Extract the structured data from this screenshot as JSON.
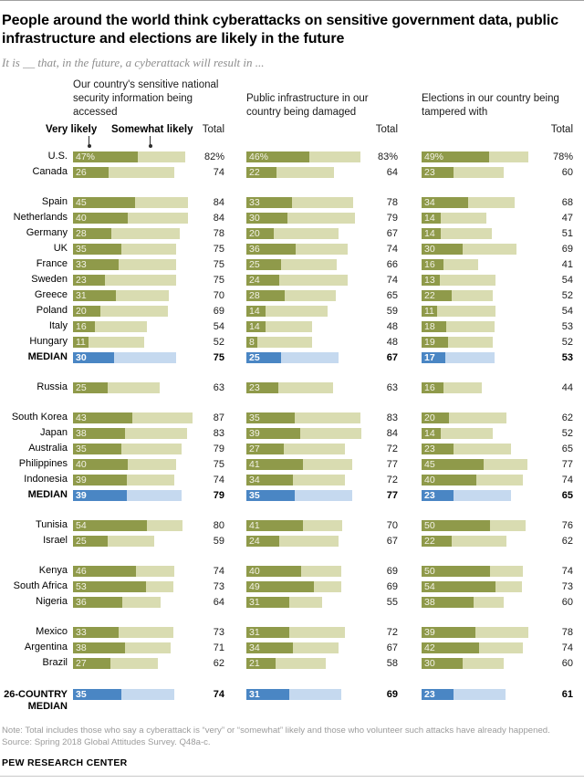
{
  "header": {
    "title": "People around the world think cyberattacks on sensitive government data, public infrastructure and elections are likely in the future",
    "subtitle": "It is __ that, in the future, a cyberattack will result in ...",
    "legend": {
      "very_likely": "Very likely",
      "somewhat_likely": "Somewhat likely",
      "total": "Total"
    }
  },
  "columns": [
    {
      "header": "Our country's sensitive national security information being accessed"
    },
    {
      "header": "Public infrastructure in our country being damaged"
    },
    {
      "header": "Elections in our country being tampered with"
    }
  ],
  "colors": {
    "very_likely": "#8f9a4a",
    "somewhat_likely": "#d9dcb1",
    "median_very": "#4a86c4",
    "median_somewhat": "#c5d9ef"
  },
  "footer": {
    "note": "Note: Total includes those who say a cyberattack is “very” or “somewhat” likely and those who volunteer such attacks have already happened.",
    "source": "Source: Spring 2018 Global Attitudes Survey. Q48a-c.",
    "brand": "PEW RESEARCH CENTER"
  },
  "chart_data": {
    "type": "bar",
    "orientation": "horizontal",
    "stacked": true,
    "unit": "percent",
    "xlim": [
      0,
      100
    ],
    "legend_entries": [
      "Very likely",
      "Somewhat likely"
    ],
    "measures": [
      "Our country's sensitive national security information being accessed",
      "Public infrastructure in our country being damaged",
      "Elections in our country being tampered with"
    ],
    "value_note": "values per measure: very = % very likely (dark segment), total = % total likely (full bar length)",
    "groups": [
      {
        "rows": [
          {
            "label": "U.S.",
            "pct_suffix": true,
            "values": [
              {
                "very": 47,
                "total": 82
              },
              {
                "very": 46,
                "total": 83
              },
              {
                "very": 49,
                "total": 78
              }
            ]
          },
          {
            "label": "Canada",
            "values": [
              {
                "very": 26,
                "total": 74
              },
              {
                "very": 22,
                "total": 64
              },
              {
                "very": 23,
                "total": 60
              }
            ]
          }
        ]
      },
      {
        "rows": [
          {
            "label": "Spain",
            "values": [
              {
                "very": 45,
                "total": 84
              },
              {
                "very": 33,
                "total": 78
              },
              {
                "very": 34,
                "total": 68
              }
            ]
          },
          {
            "label": "Netherlands",
            "values": [
              {
                "very": 40,
                "total": 84
              },
              {
                "very": 30,
                "total": 79
              },
              {
                "very": 14,
                "total": 47
              }
            ]
          },
          {
            "label": "Germany",
            "values": [
              {
                "very": 28,
                "total": 78
              },
              {
                "very": 20,
                "total": 67
              },
              {
                "very": 14,
                "total": 51
              }
            ]
          },
          {
            "label": "UK",
            "values": [
              {
                "very": 35,
                "total": 75
              },
              {
                "very": 36,
                "total": 74
              },
              {
                "very": 30,
                "total": 69
              }
            ]
          },
          {
            "label": "France",
            "values": [
              {
                "very": 33,
                "total": 75
              },
              {
                "very": 25,
                "total": 66
              },
              {
                "very": 16,
                "total": 41
              }
            ]
          },
          {
            "label": "Sweden",
            "values": [
              {
                "very": 23,
                "total": 75
              },
              {
                "very": 24,
                "total": 74
              },
              {
                "very": 13,
                "total": 54
              }
            ]
          },
          {
            "label": "Greece",
            "values": [
              {
                "very": 31,
                "total": 70
              },
              {
                "very": 28,
                "total": 65
              },
              {
                "very": 22,
                "total": 52
              }
            ]
          },
          {
            "label": "Poland",
            "values": [
              {
                "very": 20,
                "total": 69
              },
              {
                "very": 14,
                "total": 59
              },
              {
                "very": 11,
                "total": 54
              }
            ]
          },
          {
            "label": "Italy",
            "values": [
              {
                "very": 16,
                "total": 54
              },
              {
                "very": 14,
                "total": 48
              },
              {
                "very": 18,
                "total": 53
              }
            ]
          },
          {
            "label": "Hungary",
            "values": [
              {
                "very": 11,
                "total": 52
              },
              {
                "very": 8,
                "total": 48
              },
              {
                "very": 19,
                "total": 52
              }
            ]
          },
          {
            "label": "MEDIAN",
            "median": true,
            "values": [
              {
                "very": 30,
                "total": 75
              },
              {
                "very": 25,
                "total": 67
              },
              {
                "very": 17,
                "total": 53
              }
            ]
          }
        ]
      },
      {
        "rows": [
          {
            "label": "Russia",
            "values": [
              {
                "very": 25,
                "total": 63
              },
              {
                "very": 23,
                "total": 63
              },
              {
                "very": 16,
                "total": 44
              }
            ]
          }
        ]
      },
      {
        "rows": [
          {
            "label": "South Korea",
            "values": [
              {
                "very": 43,
                "total": 87
              },
              {
                "very": 35,
                "total": 83
              },
              {
                "very": 20,
                "total": 62
              }
            ]
          },
          {
            "label": "Japan",
            "values": [
              {
                "very": 38,
                "total": 83
              },
              {
                "very": 39,
                "total": 84
              },
              {
                "very": 14,
                "total": 52
              }
            ]
          },
          {
            "label": "Australia",
            "values": [
              {
                "very": 35,
                "total": 79
              },
              {
                "very": 27,
                "total": 72
              },
              {
                "very": 23,
                "total": 65
              }
            ]
          },
          {
            "label": "Philippines",
            "values": [
              {
                "very": 40,
                "total": 75
              },
              {
                "very": 41,
                "total": 77
              },
              {
                "very": 45,
                "total": 77
              }
            ]
          },
          {
            "label": "Indonesia",
            "values": [
              {
                "very": 39,
                "total": 74
              },
              {
                "very": 34,
                "total": 72
              },
              {
                "very": 40,
                "total": 74
              }
            ]
          },
          {
            "label": "MEDIAN",
            "median": true,
            "values": [
              {
                "very": 39,
                "total": 79
              },
              {
                "very": 35,
                "total": 77
              },
              {
                "very": 23,
                "total": 65
              }
            ]
          }
        ]
      },
      {
        "rows": [
          {
            "label": "Tunisia",
            "values": [
              {
                "very": 54,
                "total": 80
              },
              {
                "very": 41,
                "total": 70
              },
              {
                "very": 50,
                "total": 76
              }
            ]
          },
          {
            "label": "Israel",
            "values": [
              {
                "very": 25,
                "total": 59
              },
              {
                "very": 24,
                "total": 67
              },
              {
                "very": 22,
                "total": 62
              }
            ]
          }
        ]
      },
      {
        "rows": [
          {
            "label": "Kenya",
            "values": [
              {
                "very": 46,
                "total": 74
              },
              {
                "very": 40,
                "total": 69
              },
              {
                "very": 50,
                "total": 74
              }
            ]
          },
          {
            "label": "South Africa",
            "values": [
              {
                "very": 53,
                "total": 73
              },
              {
                "very": 49,
                "total": 69
              },
              {
                "very": 54,
                "total": 73
              }
            ]
          },
          {
            "label": "Nigeria",
            "values": [
              {
                "very": 36,
                "total": 64
              },
              {
                "very": 31,
                "total": 55
              },
              {
                "very": 38,
                "total": 60
              }
            ]
          }
        ]
      },
      {
        "rows": [
          {
            "label": "Mexico",
            "values": [
              {
                "very": 33,
                "total": 73
              },
              {
                "very": 31,
                "total": 72
              },
              {
                "very": 39,
                "total": 78
              }
            ]
          },
          {
            "label": "Argentina",
            "values": [
              {
                "very": 38,
                "total": 71
              },
              {
                "very": 34,
                "total": 67
              },
              {
                "very": 42,
                "total": 74
              }
            ]
          },
          {
            "label": "Brazil",
            "values": [
              {
                "very": 27,
                "total": 62
              },
              {
                "very": 21,
                "total": 58
              },
              {
                "very": 30,
                "total": 60
              }
            ]
          }
        ]
      },
      {
        "rows": [
          {
            "label": "26-COUNTRY MEDIAN",
            "median": true,
            "two_line": true,
            "values": [
              {
                "very": 35,
                "total": 74
              },
              {
                "very": 31,
                "total": 69
              },
              {
                "very": 23,
                "total": 61
              }
            ]
          }
        ]
      }
    ]
  }
}
